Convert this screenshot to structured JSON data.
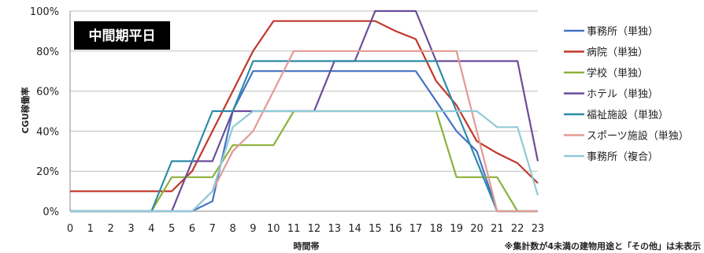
{
  "chart_data": {
    "type": "line",
    "title": "中間期平日",
    "xlabel": "時間帯",
    "ylabel": "CGU稼働率",
    "x": [
      0,
      1,
      2,
      3,
      4,
      5,
      6,
      7,
      8,
      9,
      10,
      11,
      12,
      13,
      14,
      15,
      16,
      17,
      18,
      19,
      20,
      21,
      22,
      23
    ],
    "ylim": [
      0,
      100
    ],
    "yticks": [
      0,
      20,
      40,
      60,
      80,
      100
    ],
    "ytick_labels": [
      "0%",
      "20%",
      "40%",
      "60%",
      "80%",
      "100%"
    ],
    "grid": "horizontal",
    "legend_position": "right",
    "note": "※集計数が4未満の建物用途と「その他」は未表示",
    "series": [
      {
        "name": "事務所（単独）",
        "color": "#4472C4",
        "values": [
          0,
          0,
          0,
          0,
          0,
          0,
          0,
          5,
          50,
          70,
          70,
          70,
          70,
          70,
          70,
          70,
          70,
          70,
          55,
          40,
          30,
          0,
          0,
          0
        ]
      },
      {
        "name": "病院（単独）",
        "color": "#C0392B",
        "values": [
          10,
          10,
          10,
          10,
          10,
          10,
          20,
          40,
          60,
          80,
          95,
          95,
          95,
          95,
          95,
          95,
          90,
          86,
          65,
          53,
          35,
          29,
          24,
          14
        ]
      },
      {
        "name": "学校（単独）",
        "color": "#8DB13B",
        "values": [
          0,
          0,
          0,
          0,
          0,
          17,
          17,
          17,
          33,
          33,
          33,
          50,
          50,
          50,
          50,
          50,
          50,
          50,
          50,
          17,
          17,
          17,
          0,
          0
        ]
      },
      {
        "name": "ホテル（単独）",
        "color": "#6B4C9A",
        "values": [
          0,
          0,
          0,
          0,
          0,
          0,
          25,
          25,
          50,
          50,
          50,
          50,
          50,
          75,
          75,
          100,
          100,
          100,
          75,
          75,
          75,
          75,
          75,
          25
        ]
      },
      {
        "name": "福祉施設（単独）",
        "color": "#2E8BA8",
        "values": [
          0,
          0,
          0,
          0,
          0,
          25,
          25,
          50,
          50,
          75,
          75,
          75,
          75,
          75,
          75,
          75,
          75,
          75,
          75,
          50,
          25,
          0,
          0,
          0
        ]
      },
      {
        "name": "スポーツ施設（単独）",
        "color": "#E39A94",
        "values": [
          0,
          0,
          0,
          0,
          0,
          0,
          0,
          10,
          30,
          40,
          60,
          80,
          80,
          80,
          80,
          80,
          80,
          80,
          80,
          80,
          40,
          0,
          0,
          0
        ]
      },
      {
        "name": "事務所（複合）",
        "color": "#92C9D8",
        "values": [
          0,
          0,
          0,
          0,
          0,
          0,
          0,
          10,
          42,
          50,
          50,
          50,
          50,
          50,
          50,
          50,
          50,
          50,
          50,
          50,
          50,
          42,
          42,
          8
        ]
      }
    ]
  }
}
